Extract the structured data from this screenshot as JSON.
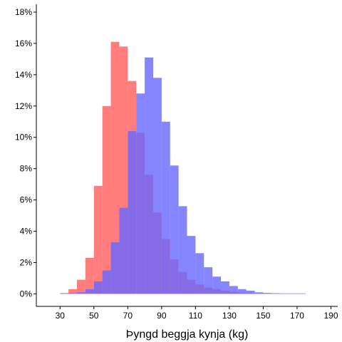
{
  "chart_data": {
    "type": "bar",
    "title": "",
    "xlabel": "Þyngd beggja kynja (kg)",
    "ylabel": "",
    "xlim": [
      16,
      194
    ],
    "ylim": [
      -0.8,
      18.5
    ],
    "x_ticks": [
      "30",
      "50",
      "70",
      "90",
      "110",
      "130",
      "150",
      "170",
      "190"
    ],
    "x_tick_values": [
      30,
      50,
      70,
      90,
      110,
      130,
      150,
      170,
      190
    ],
    "y_ticks": [
      "0%",
      "2%",
      "4%",
      "6%",
      "8%",
      "10%",
      "12%",
      "14%",
      "16%",
      "18%"
    ],
    "y_tick_values": [
      0,
      2,
      4,
      6,
      8,
      10,
      12,
      14,
      16,
      18
    ],
    "bin_width": 5,
    "bin_starts": [
      30,
      35,
      40,
      45,
      50,
      55,
      60,
      65,
      70,
      75,
      80,
      85,
      90,
      95,
      100,
      105,
      110,
      115,
      120,
      125,
      130,
      135,
      140,
      145,
      150,
      155,
      160,
      165,
      170
    ],
    "series": [
      {
        "color": "#ff6666",
        "opacity": 0.85,
        "values": [
          0.05,
          0.3,
          0.9,
          2.3,
          6.9,
          12.0,
          16.1,
          15.8,
          13.6,
          10.3,
          7.6,
          5.2,
          3.5,
          2.2,
          1.4,
          0.9,
          0.6,
          0.4,
          0.3,
          0.2,
          0.12,
          0.08,
          0.05,
          0.03,
          0.02,
          0.01,
          0.01,
          0.005,
          0.005
        ]
      },
      {
        "color": "#6666ff",
        "opacity": 0.8,
        "values": [
          0.02,
          0.05,
          0.1,
          0.3,
          0.8,
          1.5,
          3.3,
          5.5,
          10.4,
          12.8,
          15.1,
          13.8,
          11.0,
          8.2,
          5.6,
          3.7,
          2.6,
          1.7,
          1.1,
          0.8,
          0.5,
          0.3,
          0.2,
          0.1,
          0.06,
          0.04,
          0.02,
          0.01,
          0.01
        ]
      }
    ],
    "grid": false,
    "legend": "none"
  }
}
